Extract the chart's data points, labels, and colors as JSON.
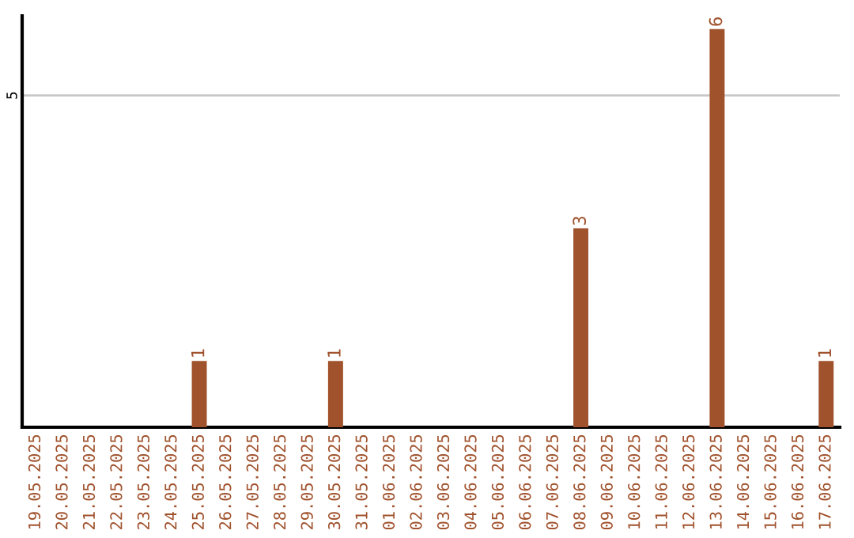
{
  "chart_data": {
    "type": "bar",
    "categories": [
      "19.05.2025",
      "20.05.2025",
      "21.05.2025",
      "22.05.2025",
      "23.05.2025",
      "24.05.2025",
      "25.05.2025",
      "26.05.2025",
      "27.05.2025",
      "28.05.2025",
      "29.05.2025",
      "30.05.2025",
      "31.05.2025",
      "01.06.2025",
      "02.06.2025",
      "03.06.2025",
      "04.06.2025",
      "05.06.2025",
      "06.06.2025",
      "07.06.2025",
      "08.06.2025",
      "09.06.2025",
      "10.06.2025",
      "11.06.2025",
      "12.06.2025",
      "13.06.2025",
      "14.06.2025",
      "15.06.2025",
      "16.06.2025",
      "17.06.2025"
    ],
    "values": [
      0,
      0,
      0,
      0,
      0,
      0,
      1,
      0,
      0,
      0,
      0,
      1,
      0,
      0,
      0,
      0,
      0,
      0,
      0,
      0,
      3,
      0,
      0,
      0,
      0,
      6,
      0,
      0,
      0,
      1
    ],
    "value_labels": [
      null,
      null,
      null,
      null,
      null,
      null,
      "1",
      null,
      null,
      null,
      null,
      "1",
      null,
      null,
      null,
      null,
      null,
      null,
      null,
      null,
      "3",
      null,
      null,
      null,
      null,
      "6",
      null,
      null,
      null,
      "1"
    ],
    "color": "#a0522d",
    "ylim": [
      0,
      6.2
    ],
    "yticks": [
      5
    ],
    "grid": "y"
  }
}
